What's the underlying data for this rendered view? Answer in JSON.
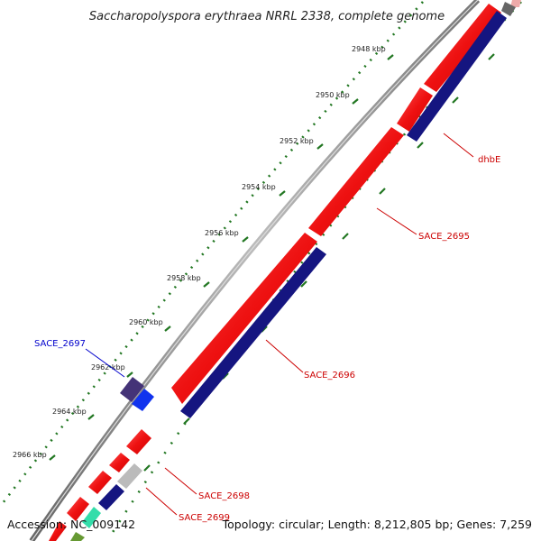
{
  "title": "Saccharopolyspora erythraea NRRL 2338, complete genome",
  "footer": {
    "accession": "Accession: NC_009142",
    "summary": "Topology: circular; Length: 8,212,805 bp; Genes: 7,259"
  },
  "ticks": [
    "2948 kbp",
    "2950 kbp",
    "2952 kbp",
    "2954 kbp",
    "2956 kbp",
    "2958 kbp",
    "2960 kbp",
    "2962 kbp",
    "2964 kbp",
    "2966 kbp"
  ],
  "gene_labels": [
    {
      "name": "dhbE",
      "color": "#cc0000"
    },
    {
      "name": "SACE_2695",
      "color": "#cc0000"
    },
    {
      "name": "SACE_2696",
      "color": "#cc0000"
    },
    {
      "name": "SACE_2697",
      "color": "#0000cc"
    },
    {
      "name": "SACE_2698",
      "color": "#cc0000"
    },
    {
      "name": "SACE_2699",
      "color": "#cc0000"
    }
  ],
  "colors": {
    "gene_red": "#ee1111",
    "cds_navy": "#151580",
    "gene_blue": "#1133ee",
    "rna_purple": "#443377",
    "pseudo_gray": "#bbbbbb",
    "backbone": "#888888",
    "tick_green": "#227722",
    "teal": "#33ddaa",
    "olive": "#669933"
  }
}
